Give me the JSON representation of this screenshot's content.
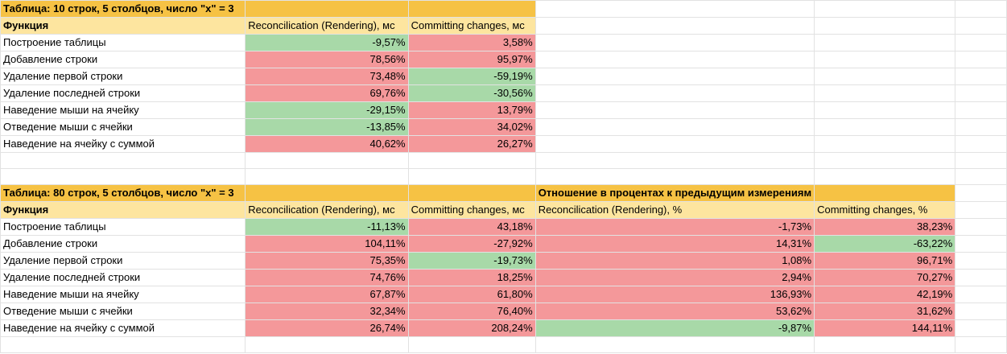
{
  "table1": {
    "title": "Таблица: 10 строк, 5 столбцов, число \"x\" = 3",
    "headers": [
      "Функция",
      "Reconcilication (Rendering), мс",
      "Committing changes, мс"
    ],
    "rows": [
      {
        "name": "Построение таблицы",
        "vals": [
          {
            "v": "-9,57%",
            "s": "green"
          },
          {
            "v": "3,58%",
            "s": "red"
          }
        ]
      },
      {
        "name": "Добавление строки",
        "vals": [
          {
            "v": "78,56%",
            "s": "red"
          },
          {
            "v": "95,97%",
            "s": "red"
          }
        ]
      },
      {
        "name": "Удаление первой строки",
        "vals": [
          {
            "v": "73,48%",
            "s": "red"
          },
          {
            "v": "-59,19%",
            "s": "green"
          }
        ]
      },
      {
        "name": "Удаление последней строки",
        "vals": [
          {
            "v": "69,76%",
            "s": "red"
          },
          {
            "v": "-30,56%",
            "s": "green"
          }
        ]
      },
      {
        "name": "Наведение мыши на ячейку",
        "vals": [
          {
            "v": "-29,15%",
            "s": "green"
          },
          {
            "v": "13,79%",
            "s": "red"
          }
        ]
      },
      {
        "name": "Отведение мыши с ячейки",
        "vals": [
          {
            "v": "-13,85%",
            "s": "green"
          },
          {
            "v": "34,02%",
            "s": "red"
          }
        ]
      },
      {
        "name": "Наведение на ячейку с суммой",
        "vals": [
          {
            "v": "40,62%",
            "s": "red"
          },
          {
            "v": "26,27%",
            "s": "red"
          }
        ]
      }
    ]
  },
  "table2": {
    "title": "Таблица: 80 строк, 5 столбцов, число \"x\" = 3",
    "ratio_title": "Отношение в процентах к предыдущим измерениям",
    "headers": [
      "Функция",
      "Reconcilication (Rendering), мс",
      "Committing changes, мс",
      "Reconcilication (Rendering), %",
      "Committing changes, %"
    ],
    "rows": [
      {
        "name": "Построение таблицы",
        "vals": [
          {
            "v": "-11,13%",
            "s": "green"
          },
          {
            "v": "43,18%",
            "s": "red"
          },
          {
            "v": "-1,73%",
            "s": "red"
          },
          {
            "v": "38,23%",
            "s": "red"
          }
        ]
      },
      {
        "name": "Добавление строки",
        "vals": [
          {
            "v": "104,11%",
            "s": "red"
          },
          {
            "v": "-27,92%",
            "s": "red"
          },
          {
            "v": "14,31%",
            "s": "red"
          },
          {
            "v": "-63,22%",
            "s": "green"
          }
        ]
      },
      {
        "name": "Удаление первой строки",
        "vals": [
          {
            "v": "75,35%",
            "s": "red"
          },
          {
            "v": "-19,73%",
            "s": "green"
          },
          {
            "v": "1,08%",
            "s": "red"
          },
          {
            "v": "96,71%",
            "s": "red"
          }
        ]
      },
      {
        "name": "Удаление последней строки",
        "vals": [
          {
            "v": "74,76%",
            "s": "red"
          },
          {
            "v": "18,25%",
            "s": "red"
          },
          {
            "v": "2,94%",
            "s": "red"
          },
          {
            "v": "70,27%",
            "s": "red"
          }
        ]
      },
      {
        "name": "Наведение мыши на ячейку",
        "vals": [
          {
            "v": "67,87%",
            "s": "red"
          },
          {
            "v": "61,80%",
            "s": "red"
          },
          {
            "v": "136,93%",
            "s": "red"
          },
          {
            "v": "42,19%",
            "s": "red"
          }
        ]
      },
      {
        "name": "Отведение мыши с ячейки",
        "vals": [
          {
            "v": "32,34%",
            "s": "red"
          },
          {
            "v": "76,40%",
            "s": "red"
          },
          {
            "v": "53,62%",
            "s": "red"
          },
          {
            "v": "31,62%",
            "s": "red"
          }
        ]
      },
      {
        "name": "Наведение на ячейку с суммой",
        "vals": [
          {
            "v": "26,74%",
            "s": "red"
          },
          {
            "v": "208,24%",
            "s": "red"
          },
          {
            "v": "-9,87%",
            "s": "green"
          },
          {
            "v": "144,11%",
            "s": "red"
          }
        ]
      }
    ]
  },
  "colors": {
    "title": "#f6c244",
    "header": "#fde59f",
    "green": "#a8d9a8",
    "red": "#f4989a",
    "grid": "#e2e2e2"
  }
}
